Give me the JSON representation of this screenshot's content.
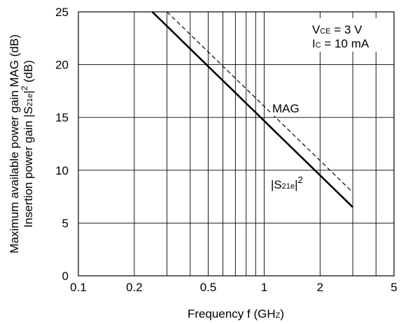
{
  "chart_data": {
    "type": "line",
    "x_scale": "log",
    "xlabel_main": "Frequency f (GH",
    "xlabel_small": "Z",
    "xlabel_tail": ")",
    "ylabel_line1": "Maximum available power gain MAG (dB)",
    "ylabel_line2_a": "Insertion power gain |S",
    "ylabel_line2_sub": "21e",
    "ylabel_line2_b": "|",
    "ylabel_line2_sup": "2",
    "ylabel_line2_c": " (dB)",
    "xlim": [
      0.1,
      5
    ],
    "ylim": [
      0,
      25
    ],
    "x_ticks": [
      0.1,
      0.2,
      0.5,
      1,
      2,
      5
    ],
    "x_tick_labels": [
      "0.1",
      "0.2",
      "0.5",
      "1",
      "2",
      "5"
    ],
    "y_ticks": [
      0,
      5,
      10,
      15,
      20,
      25
    ],
    "y_tick_labels": [
      "0",
      "5",
      "10",
      "15",
      "20",
      "25"
    ],
    "grid": true,
    "conditions": {
      "vce_prefix": "V",
      "vce_sub": "CE",
      "vce_value": " = 3 V",
      "ic_prefix": "I",
      "ic_sub": "C",
      "ic_value": " = 10 mA"
    },
    "series": [
      {
        "name": "MAG",
        "style": "dashed",
        "x": [
          0.3,
          3.0
        ],
        "y": [
          25.0,
          7.9
        ]
      },
      {
        "name_main": "|S",
        "name_sub": "21e",
        "name_tail": "|",
        "name_sup": "2",
        "style": "solid",
        "x": [
          0.25,
          3.0
        ],
        "y": [
          25.0,
          6.5
        ]
      }
    ],
    "colors": {
      "line": "#000000",
      "grid": "#000000"
    }
  }
}
